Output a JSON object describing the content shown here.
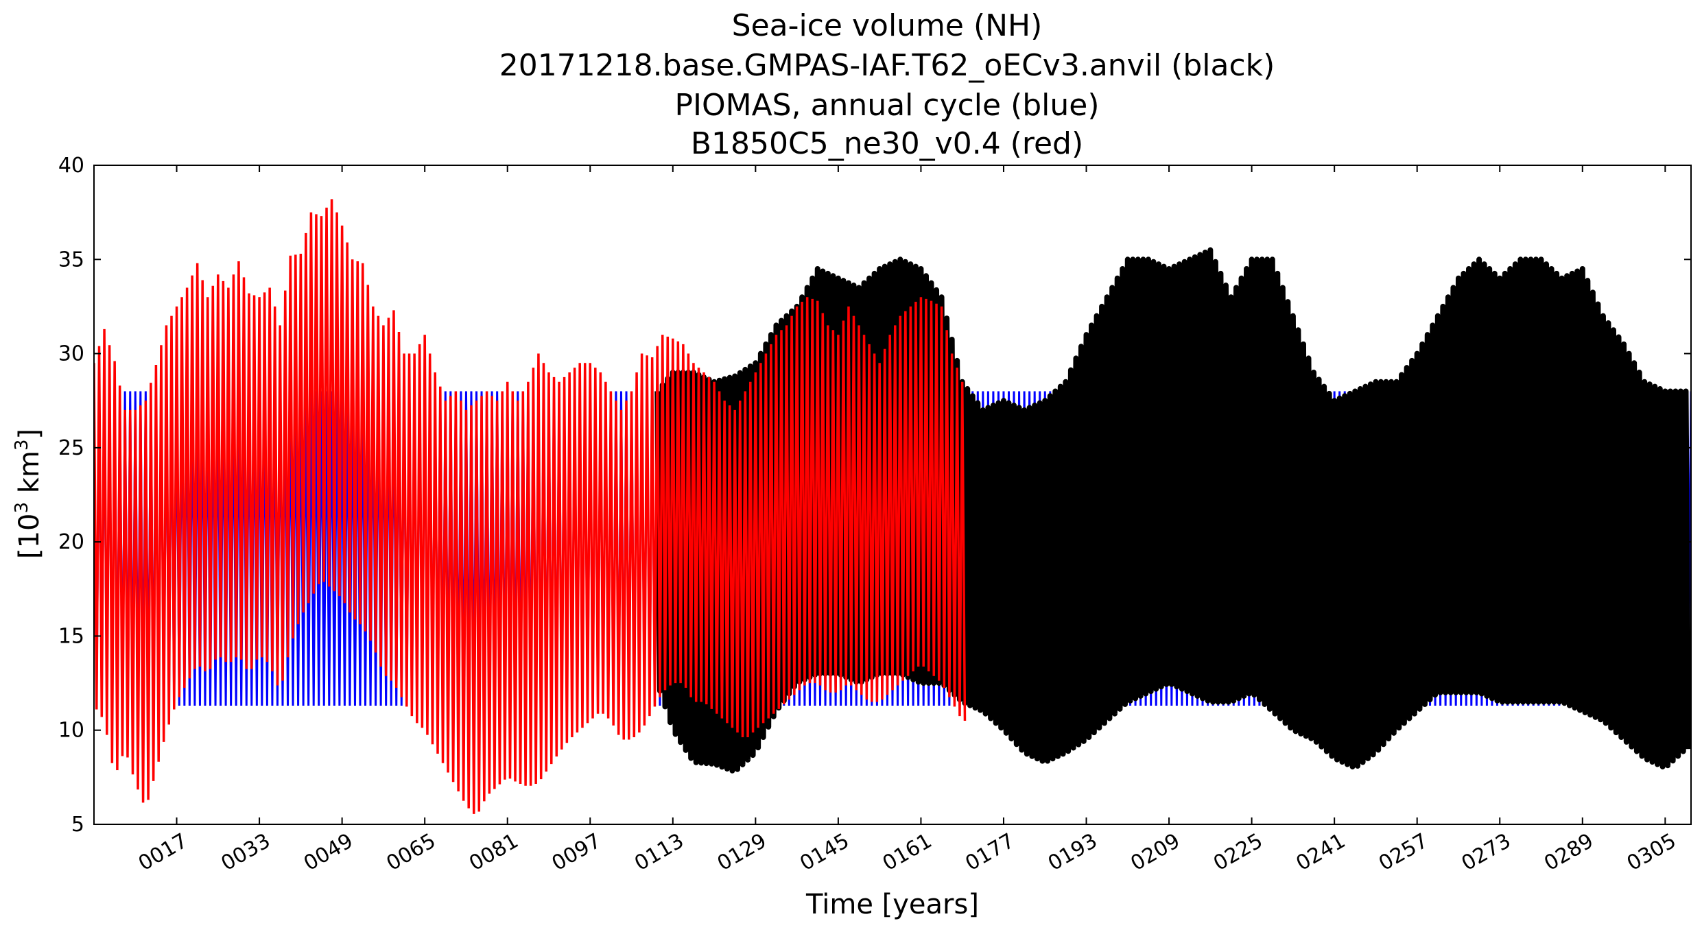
{
  "chart_data": {
    "type": "line",
    "title_lines": [
      "Sea-ice volume (NH)",
      "20171218.base.GMPAS-IAF.T62_oECv3.anvil (black)",
      "PIOMAS, annual cycle (blue)",
      "B1850C5_ne30_v0.4 (red)"
    ],
    "xlabel": "Time [years]",
    "ylabel": {
      "base": "[10",
      "sup1": "3",
      "mid": " km",
      "sup2": "3",
      "end": "]"
    },
    "xlim": [
      1,
      310
    ],
    "ylim": [
      5,
      40
    ],
    "x_ticks": [
      17,
      33,
      49,
      65,
      81,
      97,
      113,
      129,
      145,
      161,
      177,
      193,
      209,
      225,
      241,
      257,
      273,
      289,
      305
    ],
    "x_tick_labels": [
      "0017",
      "0033",
      "0049",
      "0065",
      "0081",
      "0097",
      "0113",
      "0129",
      "0145",
      "0161",
      "0177",
      "0193",
      "0209",
      "0225",
      "0241",
      "0257",
      "0273",
      "0289",
      "0305"
    ],
    "y_ticks": [
      5,
      10,
      15,
      20,
      25,
      30,
      35,
      40
    ],
    "y_tick_labels": [
      "5",
      "10",
      "15",
      "20",
      "25",
      "30",
      "35",
      "40"
    ],
    "grid": false,
    "legend": "none",
    "series": [
      {
        "color": "#0000ff",
        "x_range": [
          1,
          310
        ],
        "annual_max": 28.0,
        "annual_min": 11.3
      },
      {
        "color": "#000000",
        "years": [
          110,
          113,
          117,
          121,
          125,
          129,
          133,
          137,
          141,
          145,
          149,
          153,
          157,
          161,
          165,
          169,
          173,
          177,
          181,
          185,
          189,
          193,
          197,
          201,
          205,
          209,
          213,
          217,
          221,
          225,
          229,
          233,
          237,
          241,
          245,
          249,
          253,
          257,
          261,
          265,
          269,
          273,
          277,
          281,
          285,
          289,
          293,
          297,
          301,
          305,
          309
        ],
        "annual_max": [
          28.0,
          29.0,
          29.0,
          28.5,
          28.8,
          29.5,
          31.5,
          32.5,
          34.5,
          34.0,
          33.5,
          34.5,
          35.0,
          34.5,
          33.0,
          28.5,
          27.0,
          27.5,
          27.0,
          27.5,
          28.5,
          31.0,
          33.0,
          35.0,
          35.0,
          34.5,
          35.0,
          35.5,
          33.0,
          35.0,
          35.0,
          32.0,
          29.0,
          27.5,
          28.0,
          28.5,
          28.5,
          30.0,
          32.0,
          34.0,
          35.0,
          34.0,
          35.0,
          35.0,
          34.0,
          34.5,
          32.0,
          30.5,
          28.5,
          28.0,
          28.0
        ],
        "annual_min": [
          12.5,
          10.0,
          8.3,
          8.2,
          7.8,
          8.8,
          11.0,
          12.5,
          13.0,
          13.0,
          12.5,
          13.0,
          13.0,
          12.5,
          12.5,
          11.5,
          11.0,
          10.0,
          8.8,
          8.3,
          8.8,
          9.5,
          10.5,
          11.5,
          12.0,
          12.5,
          12.0,
          11.5,
          11.5,
          12.0,
          11.0,
          10.0,
          9.5,
          8.5,
          8.0,
          8.8,
          10.0,
          11.0,
          12.0,
          12.0,
          12.0,
          11.5,
          11.5,
          11.5,
          11.5,
          11.0,
          10.5,
          9.5,
          8.5,
          8.0,
          9.0
        ]
      },
      {
        "color": "#ff0000",
        "years": [
          1,
          3,
          5,
          7,
          9,
          11,
          13,
          15,
          17,
          19,
          21,
          23,
          25,
          27,
          29,
          31,
          33,
          35,
          37,
          39,
          41,
          43,
          45,
          47,
          49,
          51,
          53,
          55,
          57,
          59,
          61,
          63,
          65,
          67,
          69,
          71,
          73,
          75,
          77,
          79,
          81,
          83,
          85,
          87,
          89,
          91,
          93,
          95,
          97,
          99,
          101,
          103,
          105,
          107,
          109,
          111,
          113,
          115,
          117,
          119,
          121,
          123,
          125,
          127,
          129,
          131,
          133,
          135,
          137,
          139,
          141,
          143,
          145,
          147,
          149,
          151,
          153,
          155,
          157,
          159,
          161,
          163,
          165,
          167,
          169
        ],
        "annual_max": [
          29.5,
          31.3,
          29.6,
          27.0,
          27.0,
          27.5,
          29.4,
          31.5,
          32.5,
          33.5,
          34.8,
          33.0,
          34.2,
          33.5,
          34.9,
          33.2,
          33.0,
          33.5,
          31.5,
          35.2,
          35.3,
          37.5,
          37.3,
          38.2,
          36.8,
          35.0,
          34.8,
          32.5,
          31.5,
          32.3,
          30.0,
          30.0,
          31.0,
          29.0,
          27.5,
          28.0,
          27.0,
          27.5,
          28.0,
          27.5,
          28.5,
          27.5,
          28.5,
          30.0,
          29.0,
          28.5,
          29.0,
          29.5,
          29.5,
          29.0,
          28.0,
          27.0,
          28.0,
          30.0,
          29.8,
          31.0,
          30.8,
          30.5,
          29.5,
          29.0,
          28.5,
          27.5,
          27.0,
          28.0,
          29.0,
          30.0,
          31.0,
          31.5,
          32.5,
          33.0,
          32.8,
          31.5,
          31.0,
          32.5,
          31.5,
          30.5,
          29.5,
          31.0,
          32.0,
          32.5,
          33.0,
          32.8,
          32.5,
          30.0,
          28.5
        ],
        "annual_min": [
          11.3,
          10.5,
          7.5,
          9.0,
          7.2,
          5.8,
          7.8,
          9.9,
          11.5,
          12.5,
          13.5,
          13.0,
          14.0,
          13.5,
          14.0,
          13.0,
          14.0,
          13.5,
          12.0,
          14.5,
          16.0,
          17.0,
          18.0,
          17.5,
          17.0,
          16.0,
          15.5,
          14.5,
          13.0,
          12.5,
          11.5,
          10.5,
          10.0,
          9.0,
          8.0,
          7.0,
          6.0,
          5.4,
          6.5,
          7.0,
          7.5,
          7.2,
          7.0,
          7.2,
          8.0,
          8.8,
          9.5,
          10.0,
          10.5,
          11.0,
          10.5,
          9.5,
          9.5,
          10.0,
          11.0,
          12.0,
          12.5,
          12.5,
          11.5,
          11.5,
          11.0,
          10.5,
          10.0,
          9.5,
          10.0,
          10.5,
          11.0,
          11.5,
          12.0,
          12.5,
          12.5,
          12.0,
          12.0,
          12.5,
          12.0,
          11.5,
          11.5,
          12.0,
          12.5,
          13.0,
          13.5,
          13.0,
          12.5,
          11.5,
          10.5
        ]
      }
    ]
  }
}
